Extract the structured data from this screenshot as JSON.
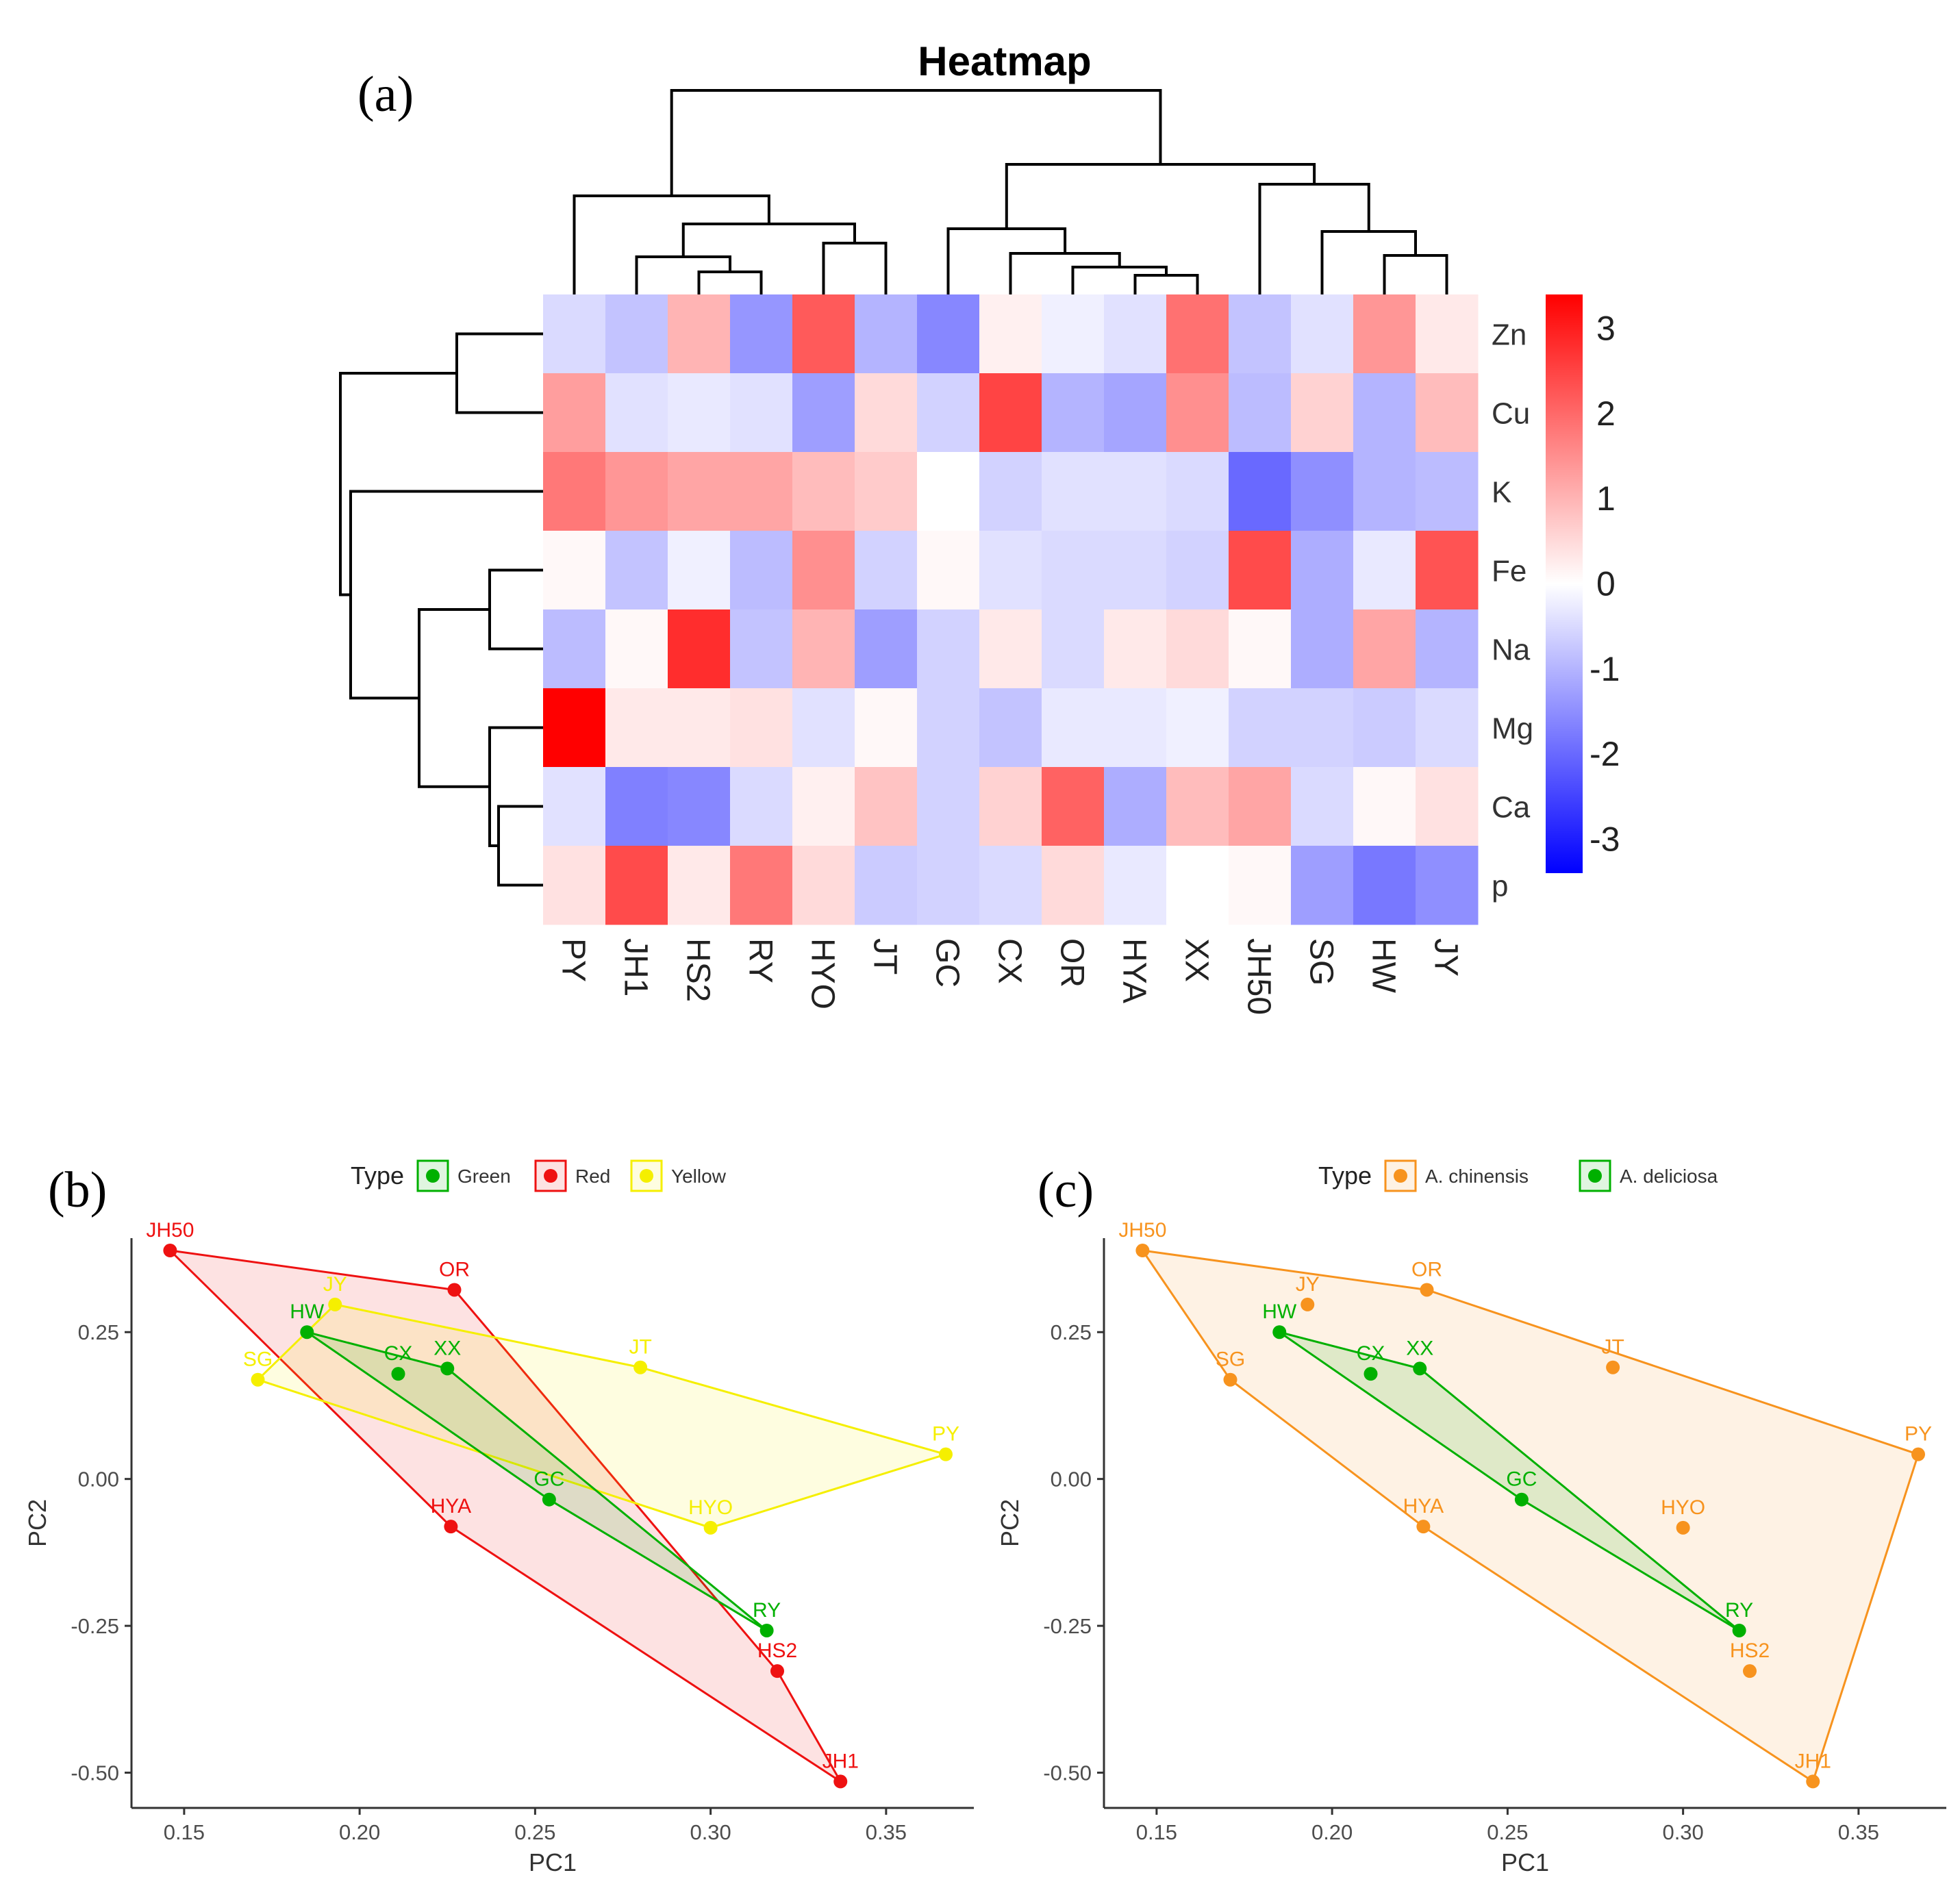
{
  "panels": {
    "a": "(a)",
    "b": "(b)",
    "c": "(c)"
  },
  "chart_data": [
    {
      "type": "heatmap",
      "title": "Heatmap",
      "columns": [
        "PY",
        "JH1",
        "HS2",
        "RY",
        "HYO",
        "JT",
        "GC",
        "CX",
        "OR",
        "HYA",
        "XX",
        "JH50",
        "SG",
        "HW",
        "JY"
      ],
      "rows": [
        "Zn",
        "Cu",
        "K",
        "Fe",
        "Na",
        "Mg",
        "Ca",
        "p"
      ],
      "values": [
        [
          -0.5,
          -0.8,
          1.0,
          -1.4,
          2.2,
          -1.0,
          -1.6,
          0.2,
          -0.2,
          -0.4,
          1.9,
          -0.8,
          -0.4,
          1.4,
          0.3
        ],
        [
          1.3,
          -0.4,
          -0.3,
          -0.4,
          -1.3,
          0.5,
          -0.6,
          2.5,
          -1.0,
          -1.2,
          1.5,
          -0.9,
          0.6,
          -1.0,
          0.9
        ],
        [
          1.8,
          1.4,
          1.2,
          1.2,
          0.9,
          0.7,
          0.0,
          -0.6,
          -0.4,
          -0.4,
          -0.5,
          -2.0,
          -1.5,
          -1.0,
          -0.9
        ],
        [
          0.1,
          -0.8,
          -0.2,
          -0.9,
          1.5,
          -0.6,
          0.1,
          -0.4,
          -0.5,
          -0.5,
          -0.6,
          2.4,
          -1.1,
          -0.3,
          2.3
        ],
        [
          -0.9,
          0.1,
          2.8,
          -0.8,
          1.0,
          -1.3,
          -0.6,
          0.3,
          -0.5,
          0.3,
          0.5,
          0.1,
          -1.1,
          1.2,
          -1.0
        ],
        [
          3.4,
          0.3,
          0.3,
          0.4,
          -0.4,
          0.1,
          -0.6,
          -0.8,
          -0.3,
          -0.3,
          -0.2,
          -0.6,
          -0.6,
          -0.7,
          -0.5
        ],
        [
          -0.4,
          -1.7,
          -1.6,
          -0.5,
          0.2,
          0.8,
          -0.6,
          0.6,
          2.1,
          -1.1,
          0.9,
          1.2,
          -0.5,
          0.1,
          0.4
        ],
        [
          0.4,
          2.4,
          0.3,
          1.8,
          0.5,
          -0.7,
          -0.6,
          -0.5,
          0.5,
          -0.3,
          0.0,
          0.1,
          -1.3,
          -1.8,
          -1.5
        ]
      ],
      "colorbar": {
        "min": -3.4,
        "max": 3.4,
        "ticks": [
          3,
          2,
          1,
          0,
          -1,
          -2,
          -3
        ],
        "low": "#0000ff",
        "mid": "#ffffff",
        "high": "#ff0000"
      }
    },
    {
      "type": "scatter",
      "xlabel": "PC1",
      "ylabel": "PC2",
      "xlim": [
        0.135,
        0.375
      ],
      "ylim": [
        -0.56,
        0.41
      ],
      "xticks": [
        0.15,
        0.2,
        0.25,
        0.3,
        0.35
      ],
      "yticks": [
        0.25,
        0.0,
        -0.25,
        -0.5
      ],
      "legend": {
        "title": "Type",
        "entries": [
          {
            "name": "Green",
            "color": "#00b000"
          },
          {
            "name": "Red",
            "color": "#ee1111"
          },
          {
            "name": "Yellow",
            "color": "#f5ef00"
          }
        ]
      },
      "points": [
        {
          "label": "JH50",
          "x": 0.146,
          "y": 0.389,
          "group": "Red"
        },
        {
          "label": "OR",
          "x": 0.227,
          "y": 0.322,
          "group": "Red"
        },
        {
          "label": "HYA",
          "x": 0.226,
          "y": -0.081,
          "group": "Red"
        },
        {
          "label": "HS2",
          "x": 0.319,
          "y": -0.327,
          "group": "Red"
        },
        {
          "label": "JH1",
          "x": 0.337,
          "y": -0.515,
          "group": "Red"
        },
        {
          "label": "HW",
          "x": 0.185,
          "y": 0.25,
          "group": "Green"
        },
        {
          "label": "CX",
          "x": 0.211,
          "y": 0.179,
          "group": "Green"
        },
        {
          "label": "XX",
          "x": 0.225,
          "y": 0.188,
          "group": "Green"
        },
        {
          "label": "GC",
          "x": 0.254,
          "y": -0.035,
          "group": "Green"
        },
        {
          "label": "RY",
          "x": 0.316,
          "y": -0.258,
          "group": "Green"
        },
        {
          "label": "JY",
          "x": 0.193,
          "y": 0.297,
          "group": "Yellow"
        },
        {
          "label": "SG",
          "x": 0.171,
          "y": 0.169,
          "group": "Yellow"
        },
        {
          "label": "JT",
          "x": 0.28,
          "y": 0.19,
          "group": "Yellow"
        },
        {
          "label": "PY",
          "x": 0.367,
          "y": 0.042,
          "group": "Yellow"
        },
        {
          "label": "HYO",
          "x": 0.3,
          "y": -0.083,
          "group": "Yellow"
        }
      ]
    },
    {
      "type": "scatter",
      "xlabel": "PC1",
      "ylabel": "PC2",
      "xlim": [
        0.135,
        0.375
      ],
      "ylim": [
        -0.56,
        0.41
      ],
      "xticks": [
        0.15,
        0.2,
        0.25,
        0.3,
        0.35
      ],
      "yticks": [
        0.25,
        0.0,
        -0.25,
        -0.5
      ],
      "legend": {
        "title": "Type",
        "entries": [
          {
            "name": "A. chinensis",
            "color": "#f7931e"
          },
          {
            "name": "A. deliciosa",
            "color": "#00b000"
          }
        ]
      },
      "points": [
        {
          "label": "JH50",
          "x": 0.146,
          "y": 0.389,
          "group": "A. chinensis"
        },
        {
          "label": "OR",
          "x": 0.227,
          "y": 0.322,
          "group": "A. chinensis"
        },
        {
          "label": "JY",
          "x": 0.193,
          "y": 0.297,
          "group": "A. chinensis"
        },
        {
          "label": "SG",
          "x": 0.171,
          "y": 0.169,
          "group": "A. chinensis"
        },
        {
          "label": "JT",
          "x": 0.28,
          "y": 0.19,
          "group": "A. chinensis"
        },
        {
          "label": "PY",
          "x": 0.367,
          "y": 0.042,
          "group": "A. chinensis"
        },
        {
          "label": "HYO",
          "x": 0.3,
          "y": -0.083,
          "group": "A. chinensis"
        },
        {
          "label": "HYA",
          "x": 0.226,
          "y": -0.081,
          "group": "A. chinensis"
        },
        {
          "label": "HS2",
          "x": 0.319,
          "y": -0.327,
          "group": "A. chinensis"
        },
        {
          "label": "JH1",
          "x": 0.337,
          "y": -0.515,
          "group": "A. chinensis"
        },
        {
          "label": "HW",
          "x": 0.185,
          "y": 0.25,
          "group": "A. deliciosa"
        },
        {
          "label": "CX",
          "x": 0.211,
          "y": 0.179,
          "group": "A. deliciosa"
        },
        {
          "label": "XX",
          "x": 0.225,
          "y": 0.188,
          "group": "A. deliciosa"
        },
        {
          "label": "GC",
          "x": 0.254,
          "y": -0.035,
          "group": "A. deliciosa"
        },
        {
          "label": "RY",
          "x": 0.316,
          "y": -0.258,
          "group": "A. deliciosa"
        }
      ]
    }
  ]
}
